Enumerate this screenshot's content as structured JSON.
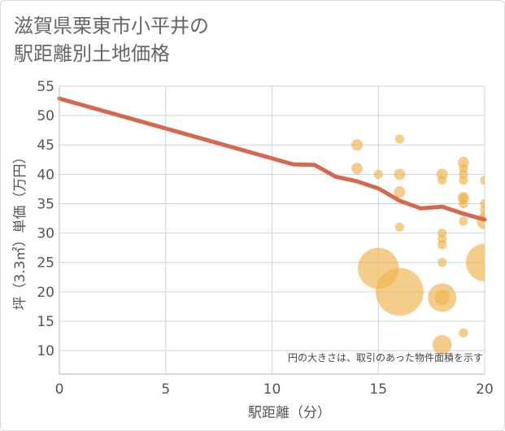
{
  "title_lines": [
    "滋賀県栗東市小平井の",
    "駅距離別土地価格"
  ],
  "chart_data": {
    "type": "scatter",
    "title": "滋賀県栗東市小平井の駅距離別土地価格",
    "xlabel": "駅距離（分）",
    "ylabel": "坪（3.3㎡）単価（万円）",
    "xlim": [
      0,
      20
    ],
    "ylim": [
      6,
      55
    ],
    "xticks": [
      0,
      5,
      10,
      15,
      20
    ],
    "yticks": [
      10,
      15,
      20,
      25,
      30,
      35,
      40,
      45,
      50,
      55
    ],
    "grid": true,
    "note": "円の大きさは、取引のあった物件面積を示す",
    "colors": {
      "points": "#f0b24c",
      "line": "#d4694f",
      "grid": "#c9d6e3"
    },
    "trend_line": {
      "name": "trend",
      "x": [
        0,
        11,
        12,
        13,
        14,
        15,
        16,
        17,
        18,
        19,
        20
      ],
      "y": [
        52.9,
        41.7,
        41.6,
        39.6,
        38.8,
        37.6,
        35.5,
        34.2,
        34.5,
        33.3,
        32.3
      ]
    },
    "points": [
      {
        "x": 14,
        "y": 45,
        "size": 1
      },
      {
        "x": 14,
        "y": 41,
        "size": 1
      },
      {
        "x": 15,
        "y": 40,
        "size": 0.8
      },
      {
        "x": 15,
        "y": 24,
        "size": 3.6
      },
      {
        "x": 16,
        "y": 46,
        "size": 0.8
      },
      {
        "x": 16,
        "y": 40,
        "size": 1
      },
      {
        "x": 16,
        "y": 37,
        "size": 1
      },
      {
        "x": 16,
        "y": 31,
        "size": 0.8
      },
      {
        "x": 16,
        "y": 20,
        "size": 4.2
      },
      {
        "x": 18,
        "y": 40,
        "size": 1
      },
      {
        "x": 18,
        "y": 39,
        "size": 0.8
      },
      {
        "x": 18,
        "y": 30,
        "size": 0.8
      },
      {
        "x": 18,
        "y": 29,
        "size": 0.8
      },
      {
        "x": 18,
        "y": 28,
        "size": 0.8
      },
      {
        "x": 18,
        "y": 25,
        "size": 0.8
      },
      {
        "x": 18,
        "y": 19,
        "size": 2.5
      },
      {
        "x": 18,
        "y": 19,
        "size": 1.3
      },
      {
        "x": 18,
        "y": 11,
        "size": 1.7
      },
      {
        "x": 19,
        "y": 42,
        "size": 1
      },
      {
        "x": 19,
        "y": 41,
        "size": 0.8
      },
      {
        "x": 19,
        "y": 40,
        "size": 0.8
      },
      {
        "x": 19,
        "y": 39,
        "size": 0.8
      },
      {
        "x": 19,
        "y": 36,
        "size": 1
      },
      {
        "x": 19,
        "y": 36,
        "size": 0.8
      },
      {
        "x": 19,
        "y": 35,
        "size": 0.8
      },
      {
        "x": 19,
        "y": 32,
        "size": 0.8
      },
      {
        "x": 19,
        "y": 13,
        "size": 0.8
      },
      {
        "x": 20,
        "y": 39,
        "size": 0.8
      },
      {
        "x": 20,
        "y": 35,
        "size": 0.8
      },
      {
        "x": 20,
        "y": 34,
        "size": 0.8
      },
      {
        "x": 20,
        "y": 33,
        "size": 0.8
      },
      {
        "x": 20,
        "y": 32,
        "size": 1.4
      },
      {
        "x": 20,
        "y": 25,
        "size": 3.3
      }
    ]
  }
}
